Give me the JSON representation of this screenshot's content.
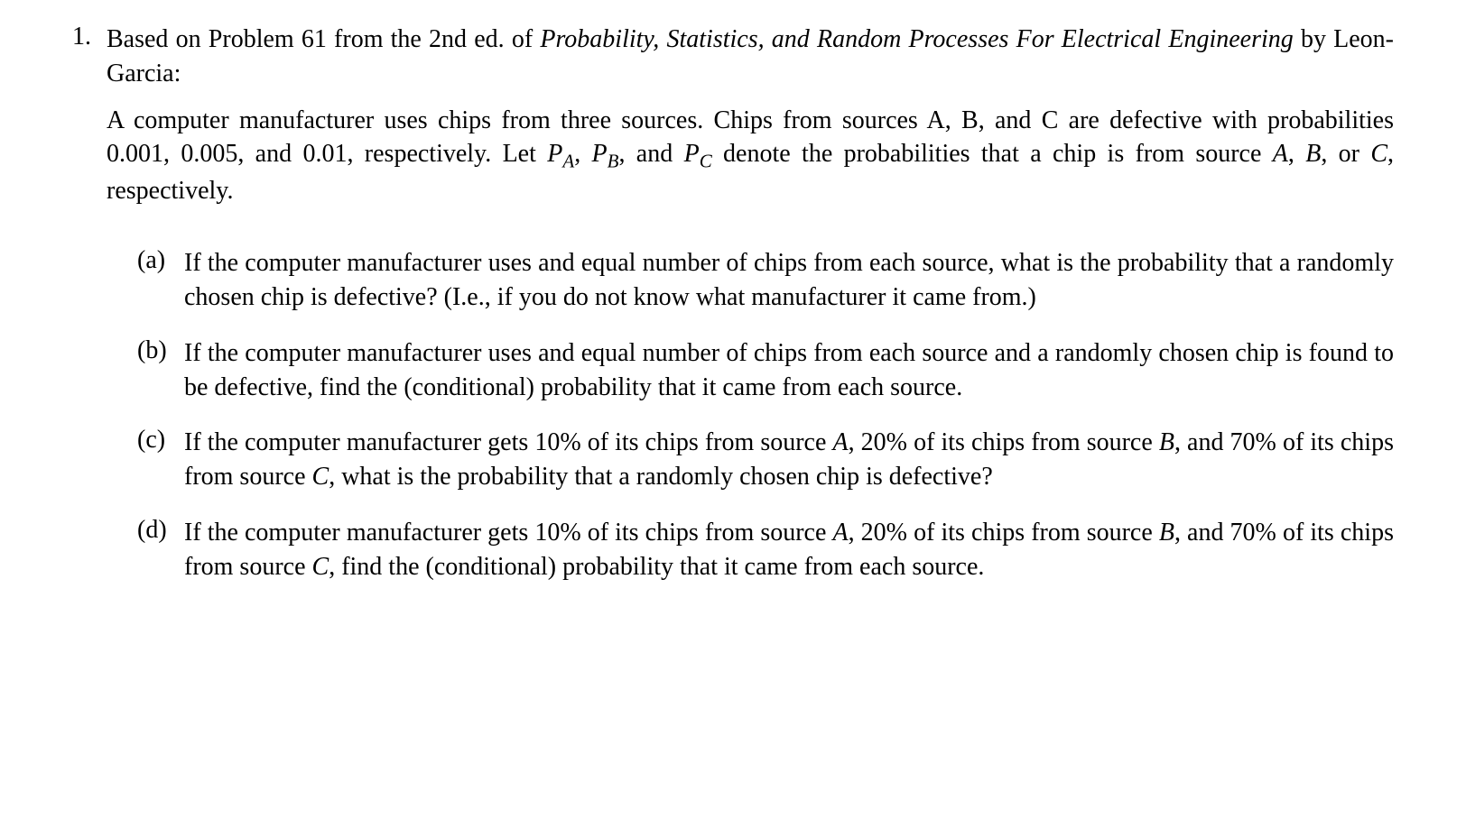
{
  "problem": {
    "number": "1.",
    "intro_prefix": "Based on Problem 61 from the 2nd ed. of ",
    "book_title": "Probability, Statistics, and Random Processes For Electrical Engineering",
    "intro_suffix": " by Leon-Garcia:",
    "statement_part1": "A computer manufacturer uses chips from three sources. Chips from sources A, B, and C are defective with probabilities 0.001, 0.005, and 0.01, respectively. Let ",
    "p_a": "P",
    "sub_a": "A",
    "statement_part2": ", ",
    "p_b": "P",
    "sub_b": "B",
    "statement_part3": ", and ",
    "p_c": "P",
    "sub_c": "C",
    "statement_part4": " denote the probabilities that a chip is from source ",
    "src_a": "A",
    "statement_part5": ", ",
    "src_b": "B",
    "statement_part6": ", or ",
    "src_c": "C",
    "statement_part7": ", respectively.",
    "subparts": [
      {
        "label": "(a)",
        "text": "If the computer manufacturer uses and equal number of chips from each source, what is the probability that a randomly chosen chip is defective? (I.e., if you do not know what manufacturer it came from.)"
      },
      {
        "label": "(b)",
        "text": "If the computer manufacturer uses and equal number of chips from each source and a randomly chosen chip is found to be defective, find the (conditional) probability that it came from each source."
      },
      {
        "label": "(c)",
        "text_pre": "If the computer manufacturer gets 10% of its chips from source ",
        "src1": "A",
        "text_mid1": ", 20% of its chips from source ",
        "src2": "B",
        "text_mid2": ", and 70% of its chips from source ",
        "src3": "C",
        "text_post": ", what is the probability that a randomly chosen chip is defective?"
      },
      {
        "label": "(d)",
        "text_pre": "If the computer manufacturer gets 10% of its chips from source ",
        "src1": "A",
        "text_mid1": ", 20% of its chips from source ",
        "src2": "B",
        "text_mid2": ", and 70% of its chips from source ",
        "src3": "C",
        "text_post": ", find the (conditional) probability that it came from each source."
      }
    ]
  },
  "colors": {
    "text": "#000000",
    "background": "#ffffff"
  },
  "typography": {
    "font_family": "Times New Roman",
    "body_fontsize": 28,
    "line_height": 1.35
  }
}
